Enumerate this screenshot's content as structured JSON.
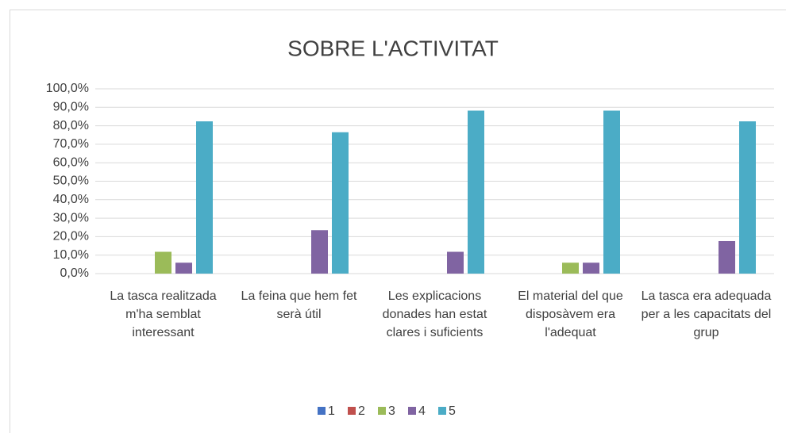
{
  "chart_data": {
    "type": "bar",
    "title": "SOBRE L'ACTIVITAT",
    "categories": [
      "La tasca realitzada m'ha semblat interessant",
      "La feina que hem fet serà útil",
      "Les explicacions donades han estat clares i suficients",
      "El material del que disposàvem era l'adequat",
      "La tasca era adequada per a les capacitats del grup"
    ],
    "series": [
      {
        "name": "1",
        "color": "#4472c4",
        "values": [
          0,
          0,
          0,
          0,
          0
        ]
      },
      {
        "name": "2",
        "color": "#c0504d",
        "values": [
          0,
          0,
          0,
          0,
          0
        ]
      },
      {
        "name": "3",
        "color": "#9bbb59",
        "values": [
          11.8,
          0,
          0,
          5.9,
          0
        ]
      },
      {
        "name": "4",
        "color": "#8064a2",
        "values": [
          5.9,
          23.5,
          11.8,
          5.9,
          17.6
        ]
      },
      {
        "name": "5",
        "color": "#4bacc6",
        "values": [
          82.4,
          76.5,
          88.2,
          88.2,
          82.4
        ]
      }
    ],
    "ylim": [
      0,
      100
    ],
    "yticks": [
      {
        "value": 0,
        "label": "0,0%"
      },
      {
        "value": 10,
        "label": "10,0%"
      },
      {
        "value": 20,
        "label": "20,0%"
      },
      {
        "value": 30,
        "label": "30,0%"
      },
      {
        "value": 40,
        "label": "40,0%"
      },
      {
        "value": 50,
        "label": "50,0%"
      },
      {
        "value": 60,
        "label": "60,0%"
      },
      {
        "value": 70,
        "label": "70,0%"
      },
      {
        "value": 80,
        "label": "80,0%"
      },
      {
        "value": 90,
        "label": "90,0%"
      },
      {
        "value": 100,
        "label": "100,0%"
      }
    ],
    "grid": true,
    "legend": "bottom"
  }
}
